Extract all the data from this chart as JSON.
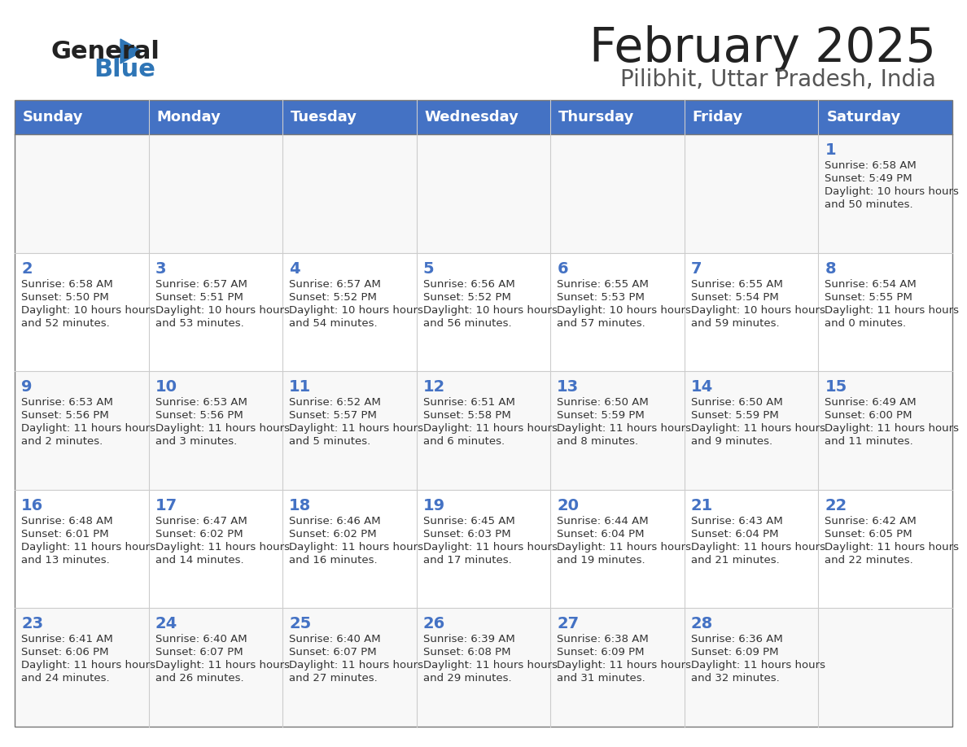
{
  "title": "February 2025",
  "subtitle": "Pilibhit, Uttar Pradesh, India",
  "days_of_week": [
    "Sunday",
    "Monday",
    "Tuesday",
    "Wednesday",
    "Thursday",
    "Friday",
    "Saturday"
  ],
  "header_bg": "#4472C4",
  "header_text": "#FFFFFF",
  "cell_bg_odd": "#F2F2F2",
  "cell_bg_even": "#FFFFFF",
  "day_num_color": "#4472C4",
  "text_color": "#333333",
  "grid_color": "#AAAAAA",
  "logo_general_color": "#222222",
  "logo_blue_color": "#2E75B6",
  "title_color": "#222222",
  "subtitle_color": "#555555",
  "calendar_data": [
    [
      null,
      null,
      null,
      null,
      null,
      null,
      {
        "day": 1,
        "sunrise": "6:58 AM",
        "sunset": "5:49 PM",
        "daylight": "10 hours and 50 minutes."
      }
    ],
    [
      {
        "day": 2,
        "sunrise": "6:58 AM",
        "sunset": "5:50 PM",
        "daylight": "10 hours and 52 minutes."
      },
      {
        "day": 3,
        "sunrise": "6:57 AM",
        "sunset": "5:51 PM",
        "daylight": "10 hours and 53 minutes."
      },
      {
        "day": 4,
        "sunrise": "6:57 AM",
        "sunset": "5:52 PM",
        "daylight": "10 hours and 54 minutes."
      },
      {
        "day": 5,
        "sunrise": "6:56 AM",
        "sunset": "5:52 PM",
        "daylight": "10 hours and 56 minutes."
      },
      {
        "day": 6,
        "sunrise": "6:55 AM",
        "sunset": "5:53 PM",
        "daylight": "10 hours and 57 minutes."
      },
      {
        "day": 7,
        "sunrise": "6:55 AM",
        "sunset": "5:54 PM",
        "daylight": "10 hours and 59 minutes."
      },
      {
        "day": 8,
        "sunrise": "6:54 AM",
        "sunset": "5:55 PM",
        "daylight": "11 hours and 0 minutes."
      }
    ],
    [
      {
        "day": 9,
        "sunrise": "6:53 AM",
        "sunset": "5:56 PM",
        "daylight": "11 hours and 2 minutes."
      },
      {
        "day": 10,
        "sunrise": "6:53 AM",
        "sunset": "5:56 PM",
        "daylight": "11 hours and 3 minutes."
      },
      {
        "day": 11,
        "sunrise": "6:52 AM",
        "sunset": "5:57 PM",
        "daylight": "11 hours and 5 minutes."
      },
      {
        "day": 12,
        "sunrise": "6:51 AM",
        "sunset": "5:58 PM",
        "daylight": "11 hours and 6 minutes."
      },
      {
        "day": 13,
        "sunrise": "6:50 AM",
        "sunset": "5:59 PM",
        "daylight": "11 hours and 8 minutes."
      },
      {
        "day": 14,
        "sunrise": "6:50 AM",
        "sunset": "5:59 PM",
        "daylight": "11 hours and 9 minutes."
      },
      {
        "day": 15,
        "sunrise": "6:49 AM",
        "sunset": "6:00 PM",
        "daylight": "11 hours and 11 minutes."
      }
    ],
    [
      {
        "day": 16,
        "sunrise": "6:48 AM",
        "sunset": "6:01 PM",
        "daylight": "11 hours and 13 minutes."
      },
      {
        "day": 17,
        "sunrise": "6:47 AM",
        "sunset": "6:02 PM",
        "daylight": "11 hours and 14 minutes."
      },
      {
        "day": 18,
        "sunrise": "6:46 AM",
        "sunset": "6:02 PM",
        "daylight": "11 hours and 16 minutes."
      },
      {
        "day": 19,
        "sunrise": "6:45 AM",
        "sunset": "6:03 PM",
        "daylight": "11 hours and 17 minutes."
      },
      {
        "day": 20,
        "sunrise": "6:44 AM",
        "sunset": "6:04 PM",
        "daylight": "11 hours and 19 minutes."
      },
      {
        "day": 21,
        "sunrise": "6:43 AM",
        "sunset": "6:04 PM",
        "daylight": "11 hours and 21 minutes."
      },
      {
        "day": 22,
        "sunrise": "6:42 AM",
        "sunset": "6:05 PM",
        "daylight": "11 hours and 22 minutes."
      }
    ],
    [
      {
        "day": 23,
        "sunrise": "6:41 AM",
        "sunset": "6:06 PM",
        "daylight": "11 hours and 24 minutes."
      },
      {
        "day": 24,
        "sunrise": "6:40 AM",
        "sunset": "6:07 PM",
        "daylight": "11 hours and 26 minutes."
      },
      {
        "day": 25,
        "sunrise": "6:40 AM",
        "sunset": "6:07 PM",
        "daylight": "11 hours and 27 minutes."
      },
      {
        "day": 26,
        "sunrise": "6:39 AM",
        "sunset": "6:08 PM",
        "daylight": "11 hours and 29 minutes."
      },
      {
        "day": 27,
        "sunrise": "6:38 AM",
        "sunset": "6:09 PM",
        "daylight": "11 hours and 31 minutes."
      },
      {
        "day": 28,
        "sunrise": "6:36 AM",
        "sunset": "6:09 PM",
        "daylight": "11 hours and 32 minutes."
      },
      null
    ]
  ]
}
